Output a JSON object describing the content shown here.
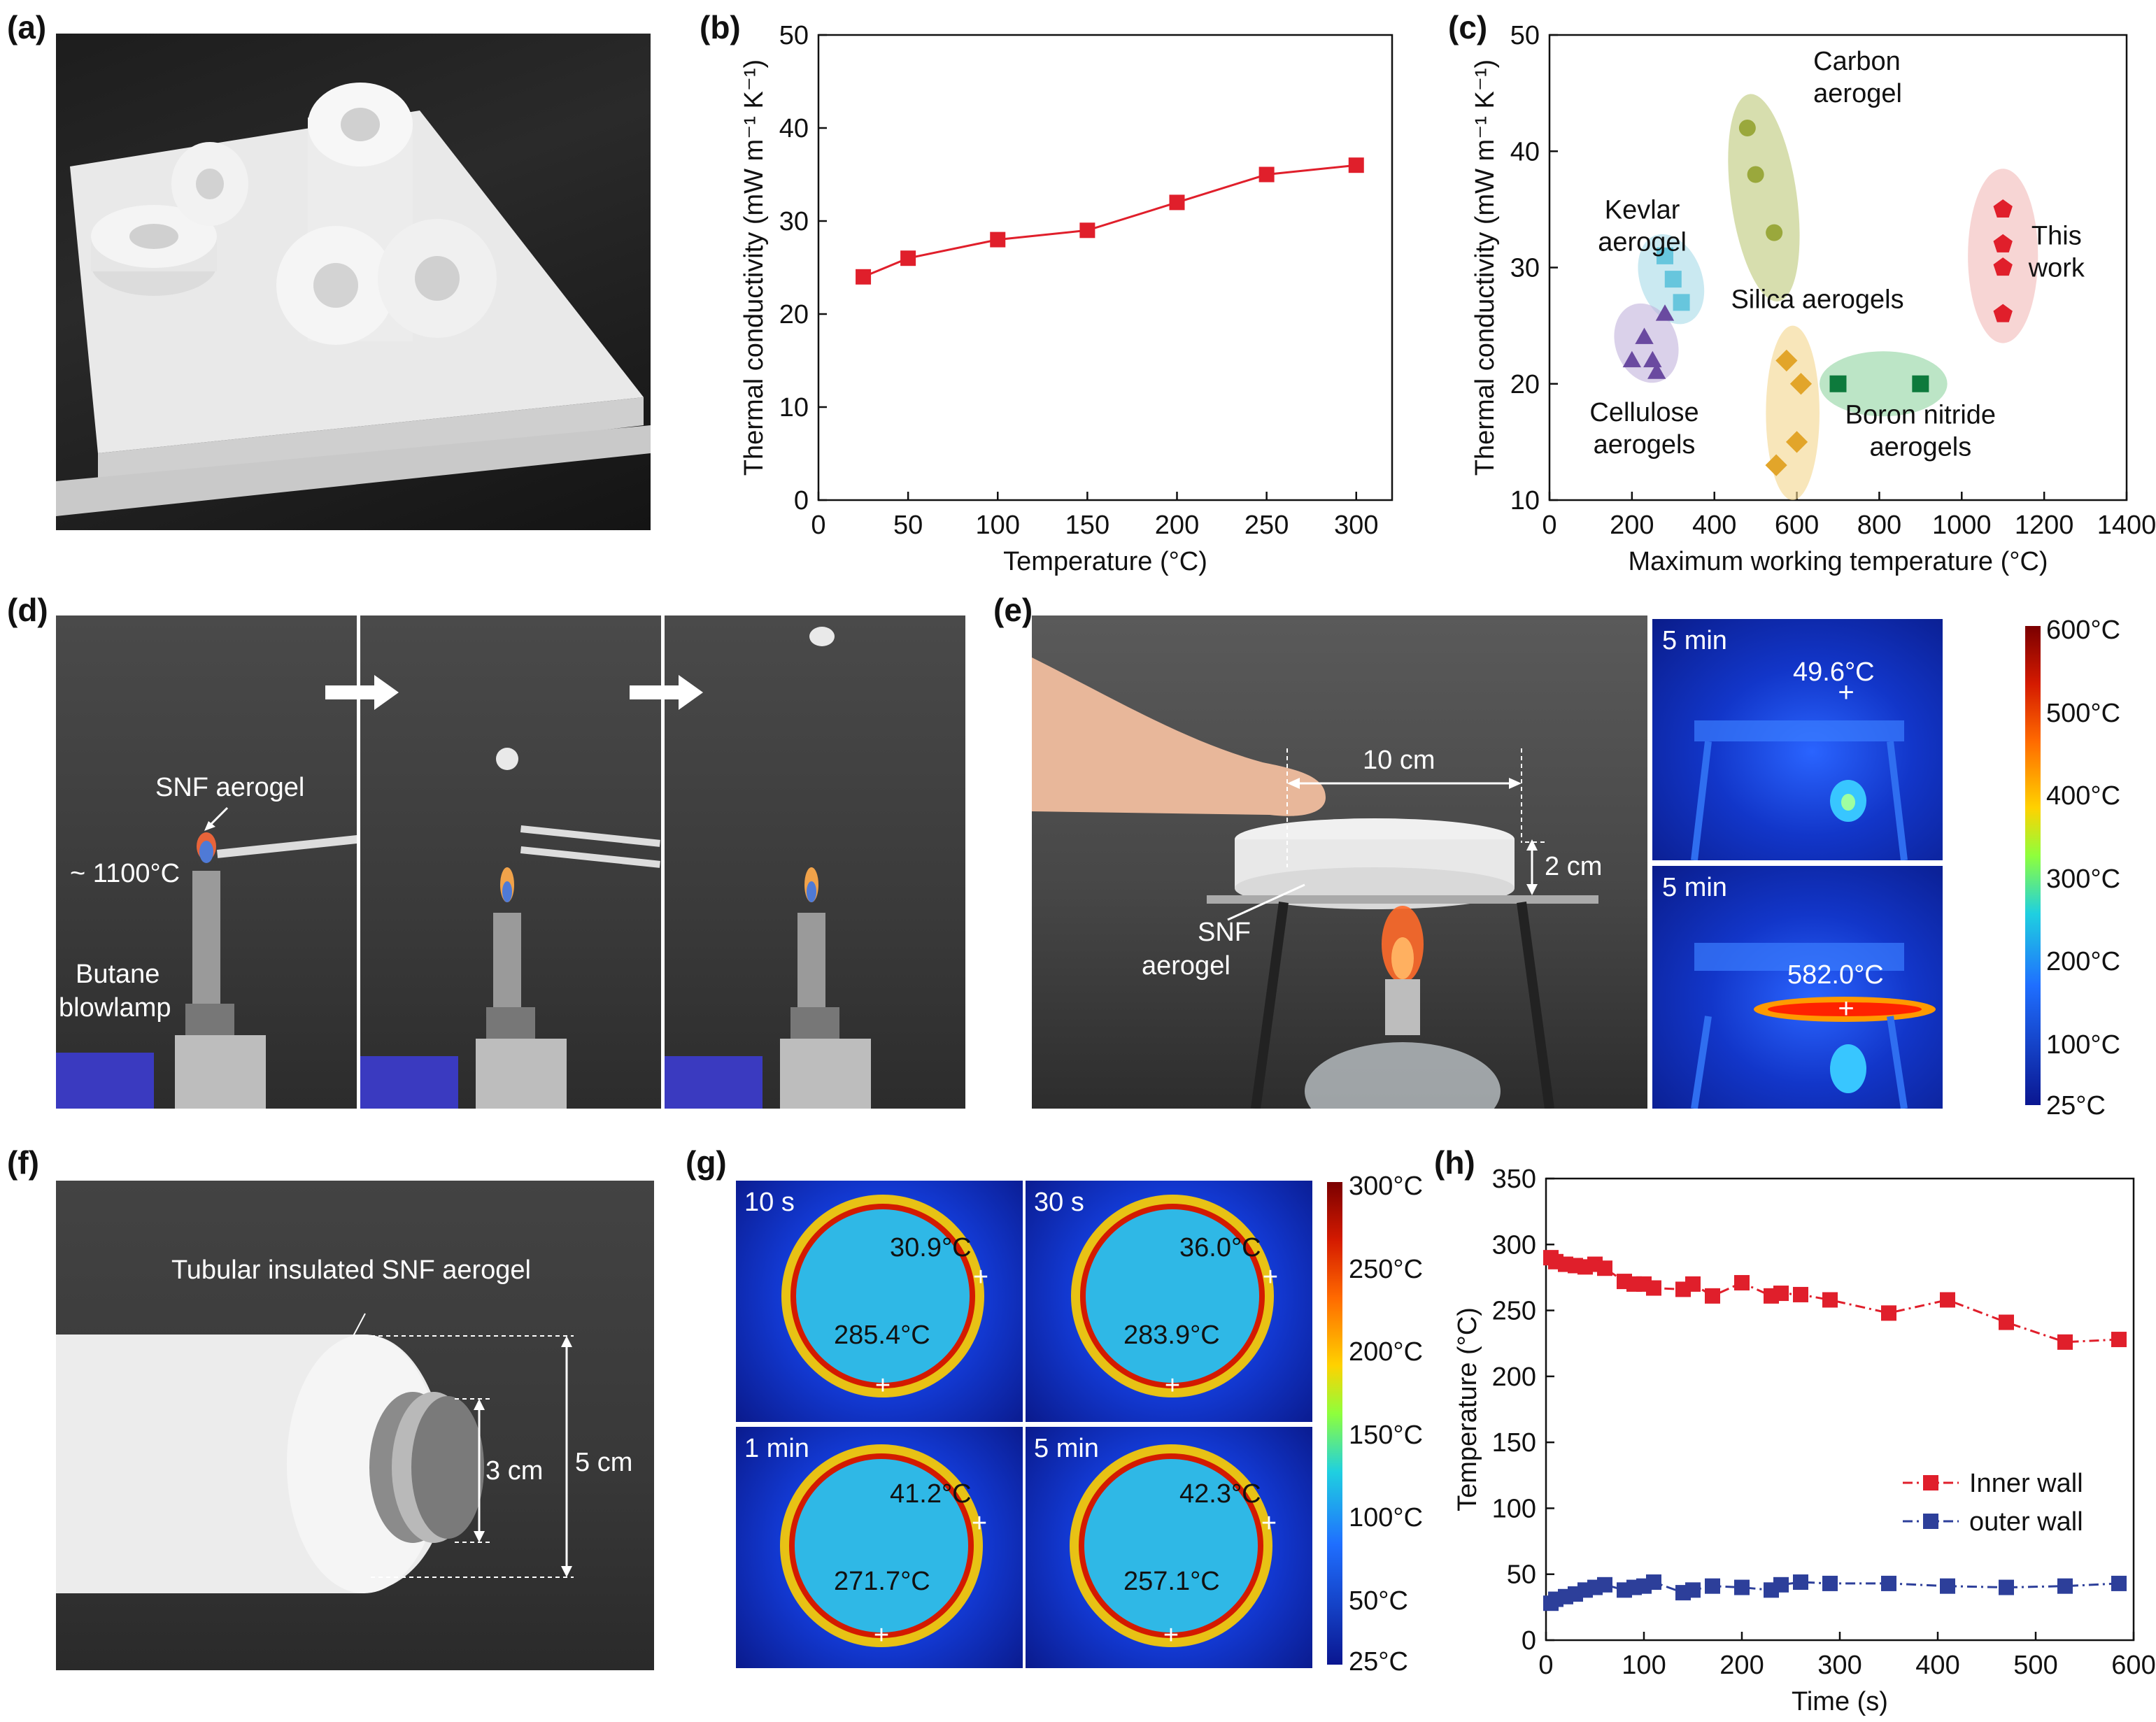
{
  "panels": {
    "a": {
      "label": "(a)"
    },
    "b": {
      "label": "(b)"
    },
    "c": {
      "label": "(c)"
    },
    "d": {
      "label": "(d)",
      "ann_aerogel": "SNF aerogel",
      "ann_temp": "~ 1100°C",
      "ann_lamp_1": "Butane",
      "ann_lamp_2": "blowlamp"
    },
    "e": {
      "label": "(e)",
      "dim_width": "10 cm",
      "dim_height": "2 cm",
      "ann_aerogel_1": "SNF",
      "ann_aerogel_2": "aerogel",
      "thermal_top_time": "5 min",
      "thermal_top_temp": "49.6°C",
      "thermal_bottom_time": "5 min",
      "thermal_bottom_temp": "582.0°C",
      "colorbar_ticks": [
        "600°C",
        "500°C",
        "400°C",
        "300°C",
        "200°C",
        "100°C",
        "25°C"
      ]
    },
    "f": {
      "label": "(f)",
      "ann_title": "Tubular insulated SNF aerogel",
      "dim_inner": "3 cm",
      "dim_outer": "5 cm"
    },
    "g": {
      "label": "(g)",
      "frames": [
        {
          "time": "10 s",
          "outer": "30.9°C",
          "inner": "285.4°C"
        },
        {
          "time": "30 s",
          "outer": "36.0°C",
          "inner": "283.9°C"
        },
        {
          "time": "1 min",
          "outer": "41.2°C",
          "inner": "271.7°C"
        },
        {
          "time": "5 min",
          "outer": "42.3°C",
          "inner": "257.1°C"
        }
      ],
      "colorbar_ticks": [
        "300°C",
        "250°C",
        "200°C",
        "150°C",
        "100°C",
        "50°C",
        "25°C"
      ]
    },
    "h": {
      "label": "(h)"
    }
  },
  "colors": {
    "red": "#e01f2b",
    "blue": "#2d3f9a",
    "olive": "#9aa83c",
    "cyan": "#67c6dd",
    "purple": "#6a4aa0",
    "gold": "#e2a52a",
    "green": "#0d7a3c",
    "thermal_bg": "#1b3fd8"
  },
  "chart_data": [
    {
      "id": "b",
      "type": "line",
      "x": [
        25,
        50,
        100,
        150,
        200,
        250,
        300
      ],
      "series": [
        {
          "values": [
            24,
            26,
            28,
            29,
            32,
            35,
            36
          ]
        }
      ],
      "xlabel": "Temperature (°C)",
      "ylabel": "Thermal conductivity (mW m⁻¹ K⁻¹)",
      "xlim": [
        0,
        320
      ],
      "ylim": [
        0,
        50
      ],
      "xticks": [
        0,
        50,
        100,
        150,
        200,
        250,
        300
      ],
      "yticks": [
        0,
        10,
        20,
        30,
        40,
        50
      ]
    },
    {
      "id": "c",
      "type": "scatter",
      "xlabel": "Maximum working temperature (°C)",
      "ylabel": "Thermal conductivity (mW m⁻¹ K⁻¹)",
      "xlim": [
        0,
        1400
      ],
      "ylim": [
        10,
        50
      ],
      "xticks": [
        0,
        200,
        400,
        600,
        800,
        1000,
        1200,
        1400
      ],
      "yticks": [
        10,
        20,
        30,
        40,
        50
      ],
      "groups": [
        {
          "label_lines": [
            "Carbon",
            "aerogel"
          ],
          "marker": "circle",
          "color": "#9aa83c",
          "points": [
            [
              480,
              42
            ],
            [
              500,
              38
            ],
            [
              545,
              33
            ]
          ]
        },
        {
          "label_lines": [
            "Kevlar",
            "aerogel"
          ],
          "marker": "square",
          "color": "#67c6dd",
          "points": [
            [
              280,
              31
            ],
            [
              300,
              29
            ],
            [
              320,
              27
            ]
          ]
        },
        {
          "label_lines": [
            "Cellulose",
            "aerogels"
          ],
          "marker": "triangle",
          "color": "#6a4aa0",
          "points": [
            [
              200,
              22
            ],
            [
              230,
              24
            ],
            [
              250,
              22
            ],
            [
              260,
              21
            ],
            [
              280,
              26
            ]
          ]
        },
        {
          "label_lines": [
            "Silica aerogels"
          ],
          "marker": "diamond",
          "color": "#e2a52a",
          "points": [
            [
              550,
              13
            ],
            [
              575,
              22
            ],
            [
              600,
              15
            ],
            [
              610,
              20
            ]
          ]
        },
        {
          "label_lines": [
            "Boron nitride",
            "aerogels"
          ],
          "marker": "square",
          "color": "#0d7a3c",
          "points": [
            [
              700,
              20
            ],
            [
              900,
              20
            ]
          ]
        },
        {
          "label_lines": [
            "This",
            "work"
          ],
          "marker": "pentagon",
          "color": "#e01f2b",
          "points": [
            [
              1100,
              26
            ],
            [
              1100,
              30
            ],
            [
              1100,
              32
            ],
            [
              1100,
              35
            ]
          ]
        }
      ]
    },
    {
      "id": "h",
      "type": "line",
      "xlabel": "Time (s)",
      "ylabel": "Temperature (°C)",
      "xlim": [
        0,
        600
      ],
      "ylim": [
        0,
        350
      ],
      "xticks": [
        0,
        100,
        200,
        300,
        400,
        500,
        600
      ],
      "yticks": [
        0,
        50,
        100,
        150,
        200,
        250,
        300,
        350
      ],
      "legend_position": "right",
      "series": [
        {
          "name": "Inner wall",
          "x": [
            5,
            10,
            20,
            30,
            40,
            50,
            60,
            80,
            90,
            100,
            110,
            140,
            150,
            170,
            200,
            230,
            240,
            260,
            290,
            350,
            410,
            470,
            530,
            585
          ],
          "values": [
            290,
            287,
            285,
            284,
            283,
            285,
            282,
            272,
            270,
            270,
            267,
            266,
            270,
            261,
            271,
            261,
            263,
            262,
            258,
            248,
            258,
            241,
            226,
            228
          ]
        },
        {
          "name": "outer wall",
          "x": [
            5,
            10,
            20,
            30,
            40,
            50,
            60,
            80,
            90,
            100,
            110,
            140,
            150,
            170,
            200,
            230,
            240,
            260,
            290,
            350,
            410,
            470,
            530,
            585
          ],
          "values": [
            28,
            31,
            33,
            35,
            38,
            40,
            42,
            38,
            40,
            41,
            44,
            36,
            38,
            41,
            40,
            38,
            42,
            44,
            43,
            43,
            41,
            40,
            41,
            43
          ]
        }
      ]
    }
  ]
}
